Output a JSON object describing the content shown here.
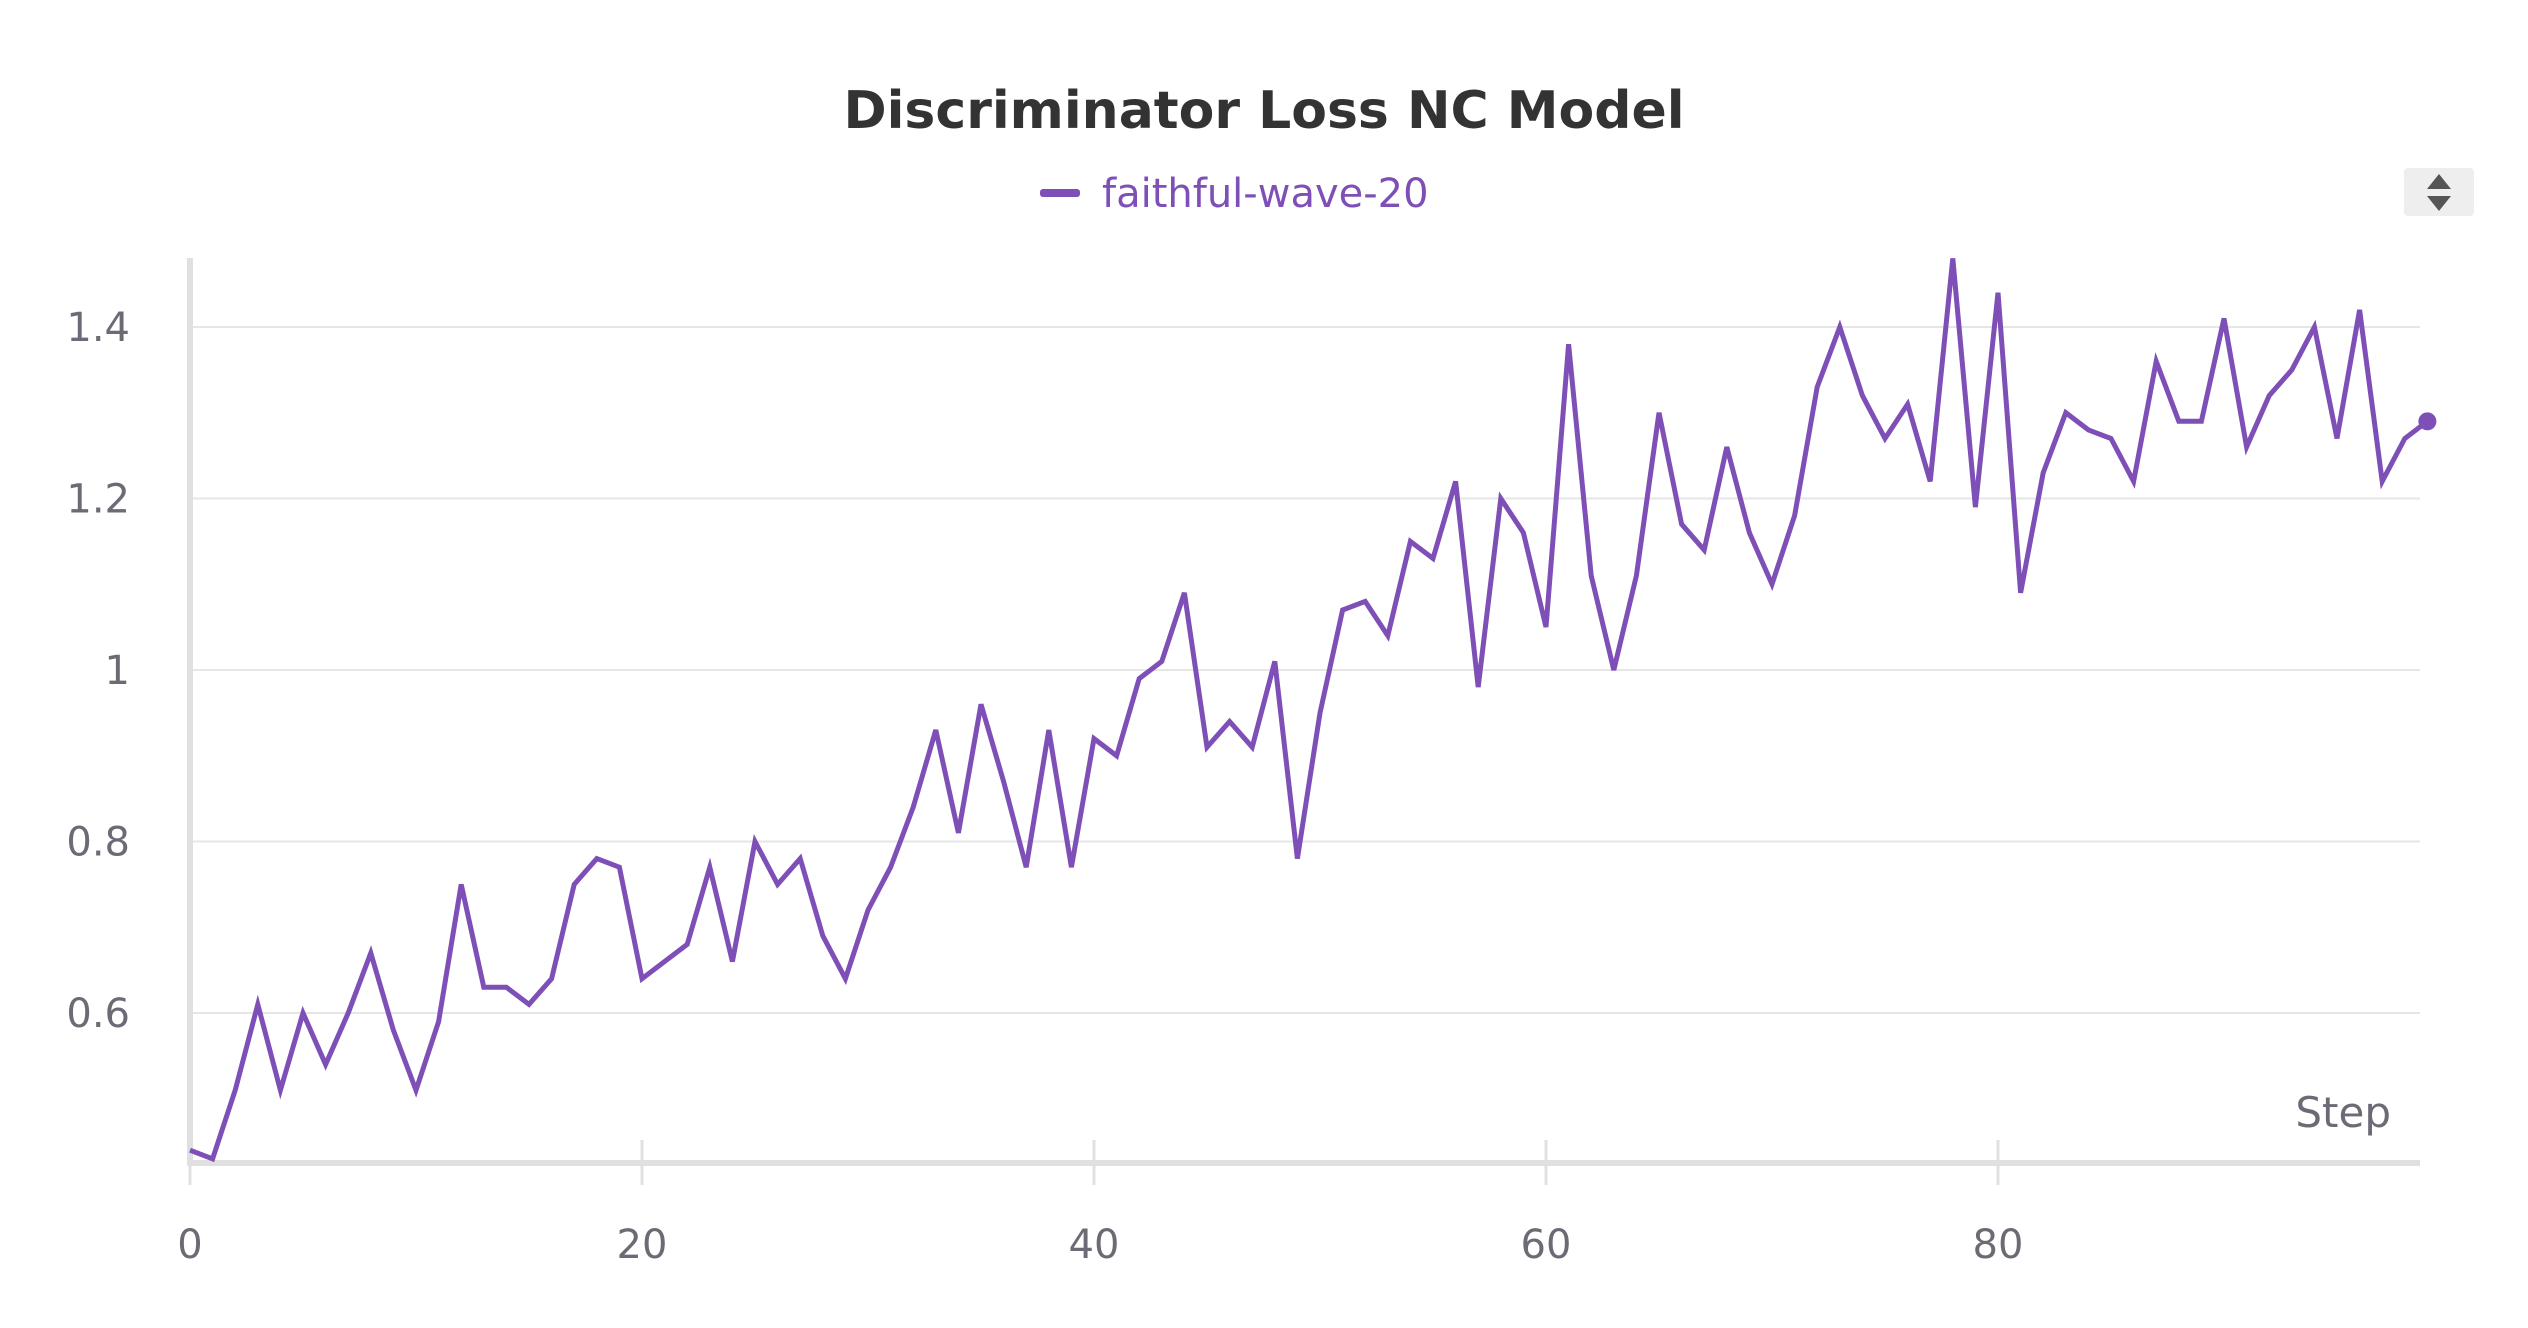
{
  "colors": {
    "series": "#7e4fb6",
    "control_bg": "#eeeeee",
    "control_arrow": "#555555"
  },
  "controls": {
    "scroll_icon": "up-down-arrows-icon"
  },
  "chart_data": {
    "type": "line",
    "title": "Discriminator Loss NC Model",
    "xlabel": "Step",
    "ylabel": "",
    "xlim": [
      0,
      99
    ],
    "ylim": [
      0.43,
      1.48
    ],
    "x_ticks": [
      0,
      20,
      40,
      60,
      80
    ],
    "x_tick_labels": [
      "0",
      "20",
      "40",
      "60",
      "80"
    ],
    "y_ticks": [
      0.6,
      0.8,
      1.0,
      1.2,
      1.4
    ],
    "y_tick_labels": [
      "0.6",
      "0.8",
      "1",
      "1.2",
      "1.4"
    ],
    "grid": true,
    "legend": "top-center",
    "series": [
      {
        "name": "faithful-wave-20",
        "x": [
          0,
          1,
          2,
          3,
          4,
          5,
          6,
          7,
          8,
          9,
          10,
          11,
          12,
          13,
          14,
          15,
          16,
          17,
          18,
          19,
          20,
          21,
          22,
          23,
          24,
          25,
          26,
          27,
          28,
          29,
          30,
          31,
          32,
          33,
          34,
          35,
          36,
          37,
          38,
          39,
          40,
          41,
          42,
          43,
          44,
          45,
          46,
          47,
          48,
          49,
          50,
          51,
          52,
          53,
          54,
          55,
          56,
          57,
          58,
          59,
          60,
          61,
          62,
          63,
          64,
          65,
          66,
          67,
          68,
          69,
          70,
          71,
          72,
          73,
          74,
          75,
          76,
          77,
          78,
          79,
          80,
          81,
          82,
          83,
          84,
          85,
          86,
          87,
          88,
          89,
          90,
          91,
          92,
          93,
          94,
          95,
          96,
          97,
          98,
          99
        ],
        "values": [
          0.44,
          0.43,
          0.51,
          0.61,
          0.51,
          0.6,
          0.54,
          0.6,
          0.67,
          0.58,
          0.51,
          0.59,
          0.75,
          0.63,
          0.63,
          0.61,
          0.64,
          0.75,
          0.78,
          0.77,
          0.64,
          0.66,
          0.68,
          0.77,
          0.66,
          0.8,
          0.75,
          0.78,
          0.69,
          0.64,
          0.72,
          0.77,
          0.84,
          0.93,
          0.81,
          0.96,
          0.87,
          0.77,
          0.93,
          0.77,
          0.92,
          0.9,
          0.99,
          1.01,
          1.09,
          0.91,
          0.94,
          0.91,
          1.01,
          0.78,
          0.95,
          1.07,
          1.08,
          1.04,
          1.15,
          1.13,
          1.22,
          0.98,
          1.2,
          1.16,
          1.05,
          1.38,
          1.11,
          1.0,
          1.11,
          1.3,
          1.17,
          1.14,
          1.26,
          1.16,
          1.1,
          1.18,
          1.33,
          1.4,
          1.32,
          1.27,
          1.31,
          1.22,
          1.48,
          1.19,
          1.44,
          1.09,
          1.23,
          1.3,
          1.28,
          1.27,
          1.22,
          1.36,
          1.29,
          1.29,
          1.41,
          1.26,
          1.32,
          1.35,
          1.4,
          1.27,
          1.42,
          1.22,
          1.27,
          1.29
        ]
      }
    ]
  }
}
